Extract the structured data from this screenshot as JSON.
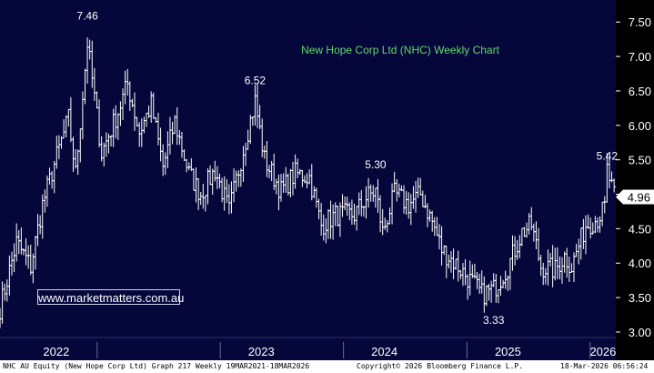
{
  "chart_data": {
    "type": "ohlc",
    "title": "New Hope Corp Ltd (NHC) Weekly Chart",
    "ylim": [
      2.92,
      7.82
    ],
    "y_ticks": [
      "3.00",
      "3.50",
      "4.00",
      "4.50",
      "5.00",
      "5.50",
      "6.00",
      "6.50",
      "7.00",
      "7.50"
    ],
    "x_labels": [
      "2022",
      "2023",
      "2024",
      "2025",
      "2026"
    ],
    "x_label_dates": [
      "2022-01-01",
      "2023-01-01",
      "2024-01-01",
      "2025-01-01",
      "2026-01-01"
    ],
    "x_range": [
      "2021-03-19",
      "2026-03-18"
    ],
    "last_price": "4.96",
    "annotations": [
      {
        "text": "7.46",
        "date": "2021-12-03",
        "value": 7.46
      },
      {
        "text": "6.52",
        "date": "2023-04-14",
        "value": 6.52
      },
      {
        "text": "5.30",
        "date": "2024-04-05",
        "value": 5.3
      },
      {
        "text": "3.33",
        "date": "2025-03-21",
        "value": 3.33
      },
      {
        "text": "5.42",
        "date": "2026-02-20",
        "value": 5.42
      }
    ],
    "anchors": [
      [
        "2021-03-19",
        3.35
      ],
      [
        "2021-05-07",
        4.3
      ],
      [
        "2021-06-18",
        3.95
      ],
      [
        "2021-07-23",
        4.85
      ],
      [
        "2021-09-03",
        5.55
      ],
      [
        "2021-10-08",
        6.1
      ],
      [
        "2021-10-29",
        5.3
      ],
      [
        "2021-12-03",
        7.2
      ],
      [
        "2022-01-14",
        5.6
      ],
      [
        "2022-03-04",
        6.2
      ],
      [
        "2022-04-01",
        6.6
      ],
      [
        "2022-05-06",
        5.9
      ],
      [
        "2022-06-10",
        6.3
      ],
      [
        "2022-07-15",
        5.4
      ],
      [
        "2022-08-19",
        6.05
      ],
      [
        "2022-09-30",
        5.3
      ],
      [
        "2022-11-04",
        5.0
      ],
      [
        "2022-12-16",
        5.35
      ],
      [
        "2023-01-27",
        4.75
      ],
      [
        "2023-03-10",
        5.65
      ],
      [
        "2023-04-14",
        6.35
      ],
      [
        "2023-05-12",
        5.5
      ],
      [
        "2023-06-30",
        5.05
      ],
      [
        "2023-08-11",
        5.3
      ],
      [
        "2023-09-22",
        5.25
      ],
      [
        "2023-10-27",
        4.55
      ],
      [
        "2023-12-08",
        4.7
      ],
      [
        "2024-02-02",
        4.7
      ],
      [
        "2024-03-08",
        4.95
      ],
      [
        "2024-04-05",
        5.05
      ],
      [
        "2024-04-26",
        4.45
      ],
      [
        "2024-05-31",
        5.0
      ],
      [
        "2024-07-12",
        4.85
      ],
      [
        "2024-08-16",
        5.0
      ],
      [
        "2024-09-20",
        4.6
      ],
      [
        "2024-10-18",
        4.2
      ],
      [
        "2024-12-06",
        3.95
      ],
      [
        "2025-01-10",
        3.75
      ],
      [
        "2025-02-14",
        3.55
      ],
      [
        "2025-03-21",
        3.62
      ],
      [
        "2025-05-02",
        3.95
      ],
      [
        "2025-06-13",
        4.45
      ],
      [
        "2025-07-11",
        4.55
      ],
      [
        "2025-08-08",
        3.95
      ],
      [
        "2025-09-19",
        3.9
      ],
      [
        "2025-10-17",
        4.1
      ],
      [
        "2025-11-07",
        3.95
      ],
      [
        "2025-12-19",
        4.55
      ],
      [
        "2026-01-23",
        4.65
      ],
      [
        "2026-02-13",
        4.8
      ],
      [
        "2026-02-20",
        5.35
      ],
      [
        "2026-03-13",
        4.96
      ]
    ],
    "grid": false,
    "colors": {
      "background": "#05073a",
      "bars": "#ffffff",
      "title": "#63d66a",
      "axis_panel": "#000000",
      "price_tag": "#ffffff"
    }
  },
  "watermark": "www.marketmatters.com.au",
  "footer": {
    "left": "NHC AU Equity (New Hope Corp Ltd) Graph 217 Weekly 19MAR2021-18MAR2026",
    "center": "Copyright© 2026 Bloomberg Finance L.P.",
    "right": "18-Mar-2026 06:56:24"
  }
}
